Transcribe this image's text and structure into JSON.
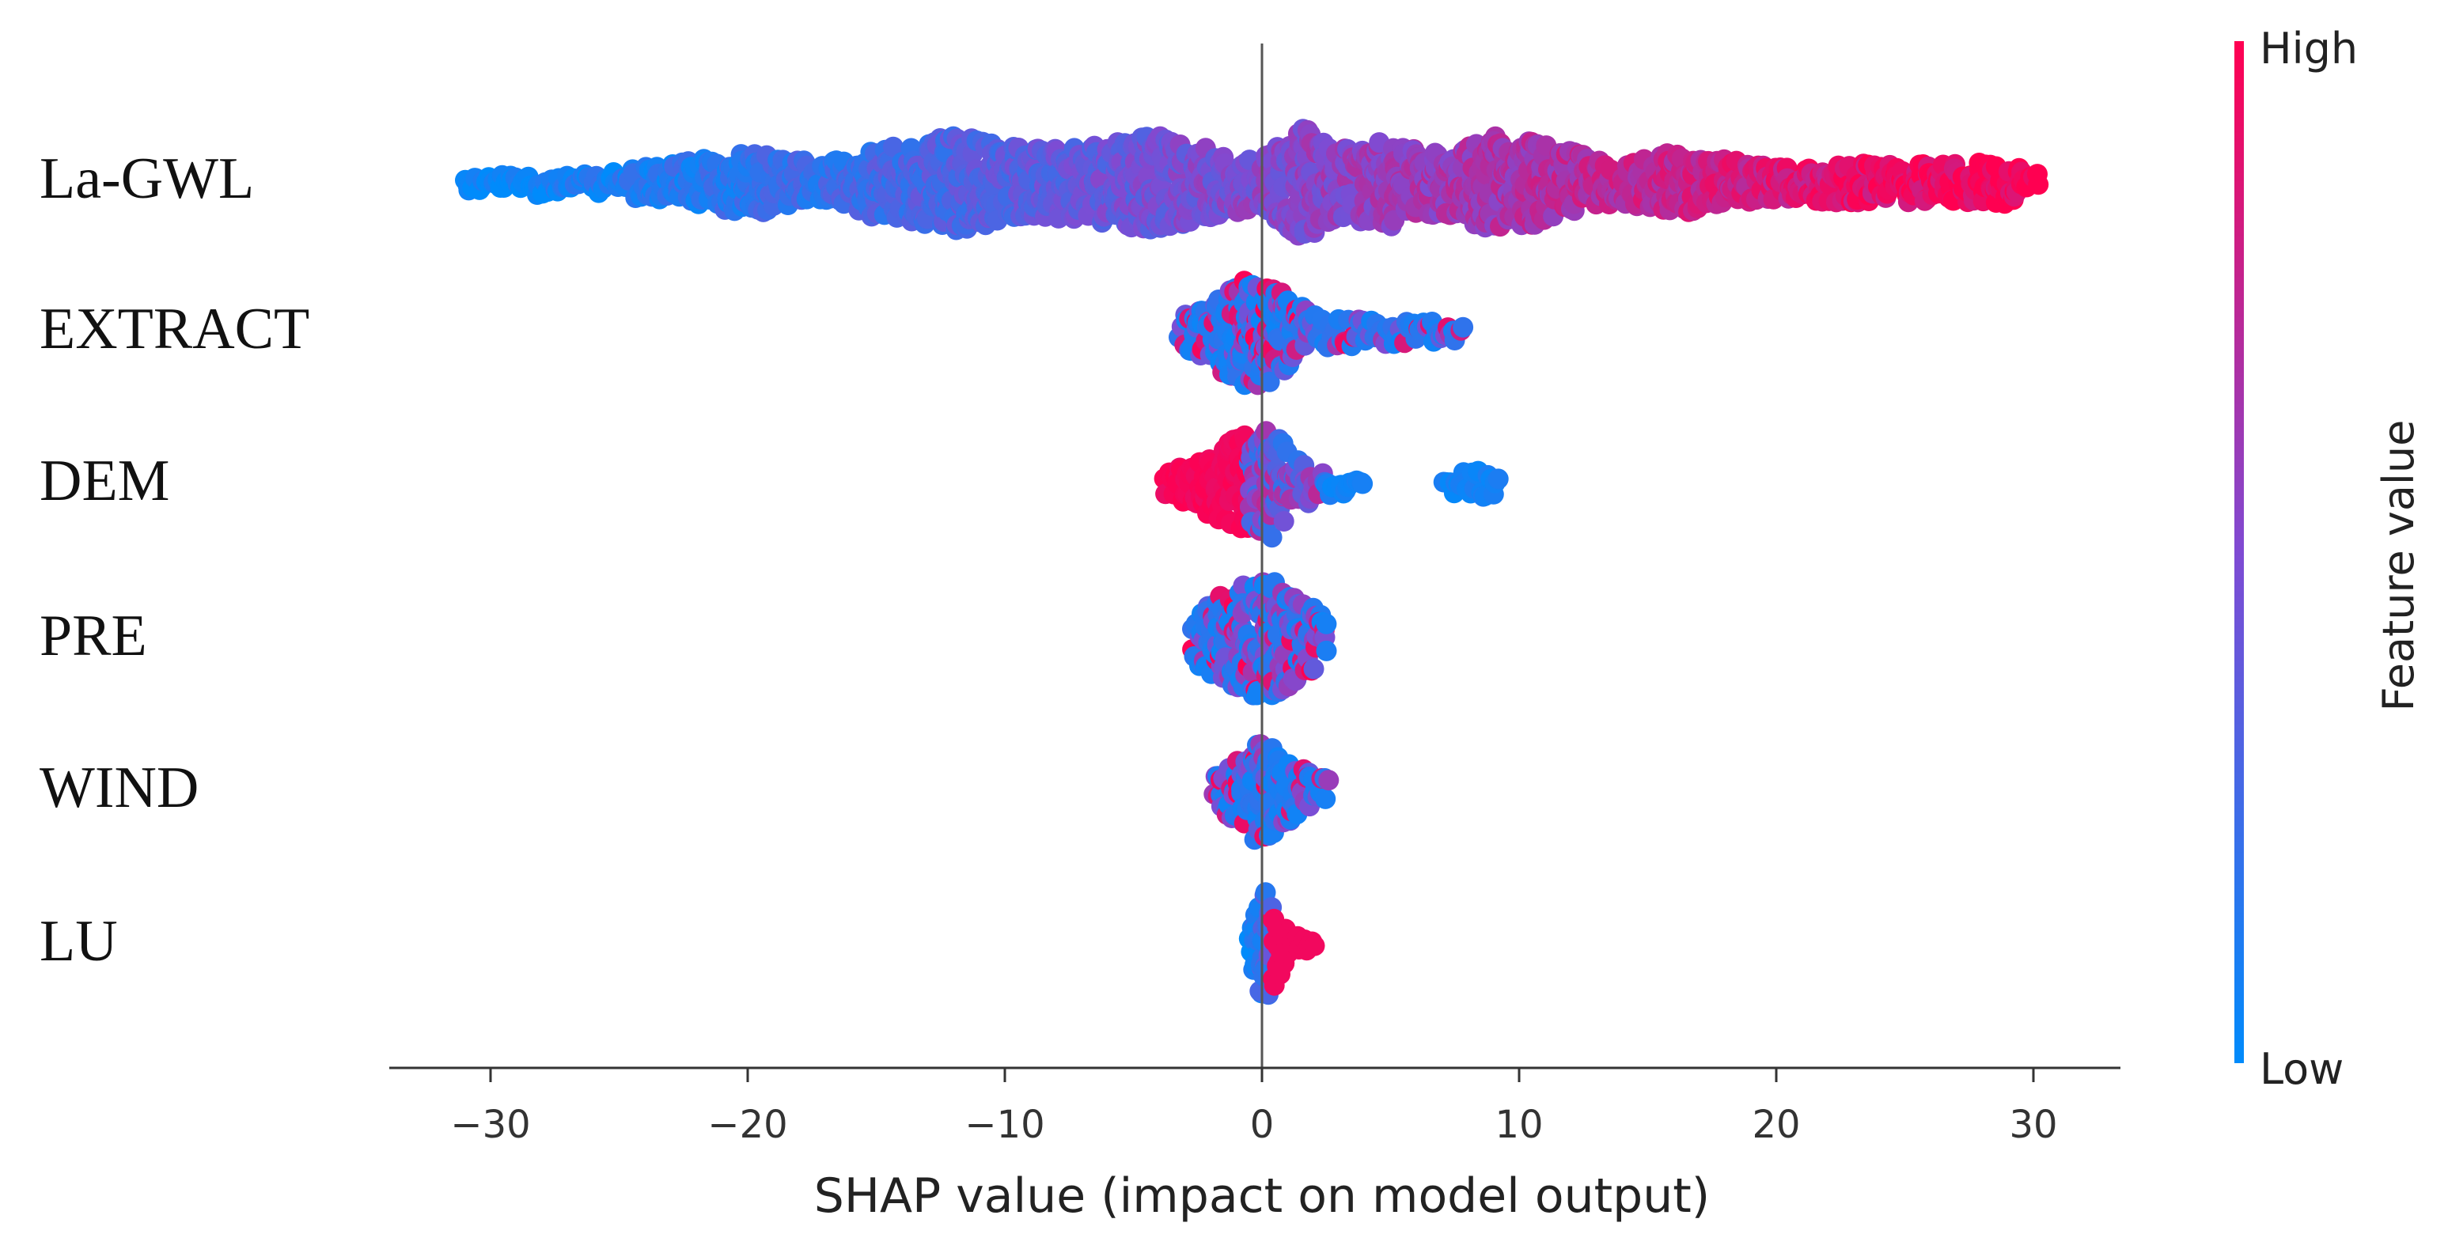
{
  "chart_data": {
    "type": "beeswarm",
    "xlabel": "SHAP value (impact on model output)",
    "xlim": [
      -34,
      33.5
    ],
    "x_ticks": [
      -30,
      -20,
      -10,
      0,
      10,
      20,
      30
    ],
    "x_tick_labels": [
      "−30",
      "−20",
      "−10",
      "0",
      "10",
      "20",
      "30"
    ],
    "colorbar": {
      "title": "Feature value",
      "high_label": "High",
      "low_label": "Low",
      "high_color": "#ff0051",
      "low_color": "#008bfb"
    },
    "features": [
      {
        "name": "La-GWL",
        "shap_range": [
          -31,
          30.2
        ],
        "color_trend": "increasing",
        "density": [
          [
            -31,
            0.15
          ],
          [
            -28,
            0.2
          ],
          [
            -26,
            0.15
          ],
          [
            -24,
            0.3
          ],
          [
            -20,
            0.55
          ],
          [
            -17,
            0.35
          ],
          [
            -15,
            0.6
          ],
          [
            -12,
            0.85
          ],
          [
            -9,
            0.6
          ],
          [
            -7,
            0.65
          ],
          [
            -4,
            0.85
          ],
          [
            -2,
            0.6
          ],
          [
            0,
            0.45
          ],
          [
            1.5,
            1.0
          ],
          [
            3,
            0.65
          ],
          [
            5,
            0.75
          ],
          [
            7,
            0.5
          ],
          [
            9,
            0.85
          ],
          [
            11,
            0.7
          ],
          [
            14,
            0.35
          ],
          [
            16,
            0.55
          ],
          [
            20,
            0.3
          ],
          [
            23,
            0.35
          ],
          [
            26,
            0.35
          ],
          [
            29,
            0.4
          ],
          [
            30.2,
            0.2
          ]
        ]
      },
      {
        "name": "EXTRACT",
        "shap_range": [
          -3.2,
          7.8
        ],
        "color_trend": "mixed",
        "density": [
          [
            -3.2,
            0.25
          ],
          [
            -2,
            0.5
          ],
          [
            -1,
            0.9
          ],
          [
            0,
            1.0
          ],
          [
            1,
            0.65
          ],
          [
            2,
            0.3
          ],
          [
            4,
            0.22
          ],
          [
            6,
            0.2
          ],
          [
            7.8,
            0.15
          ]
        ]
      },
      {
        "name": "DEM",
        "shap_range": [
          -3.8,
          9.2
        ],
        "color_trend": "decreasing",
        "density": [
          [
            -3.8,
            0.2
          ],
          [
            -2,
            0.55
          ],
          [
            -1,
            0.85
          ],
          [
            0,
            0.9
          ],
          [
            0.5,
            1.0
          ],
          [
            1,
            0.55
          ],
          [
            2,
            0.3
          ],
          [
            3,
            0.2
          ],
          [
            4,
            0.0
          ],
          [
            7,
            0.0
          ],
          [
            7.5,
            0.2
          ],
          [
            8.5,
            0.25
          ],
          [
            9.2,
            0.15
          ]
        ]
      },
      {
        "name": "PRE",
        "shap_range": [
          -2.7,
          2.6
        ],
        "color_trend": "mixed",
        "density": [
          [
            -2.7,
            0.4
          ],
          [
            -1.5,
            0.8
          ],
          [
            -0.5,
            1.0
          ],
          [
            0.5,
            1.0
          ],
          [
            1.5,
            0.7
          ],
          [
            2.6,
            0.35
          ]
        ]
      },
      {
        "name": "WIND",
        "shap_range": [
          -1.9,
          2.6
        ],
        "color_trend": "mixed",
        "density": [
          [
            -1.9,
            0.25
          ],
          [
            -1,
            0.55
          ],
          [
            -0.2,
            0.9
          ],
          [
            0.5,
            0.75
          ],
          [
            1.5,
            0.4
          ],
          [
            2.6,
            0.2
          ]
        ]
      },
      {
        "name": "LU",
        "shap_range": [
          -0.5,
          2.1
        ],
        "color_trend": "increasing",
        "density": [
          [
            -0.5,
            0.15
          ],
          [
            -0.1,
            1.0
          ],
          [
            0.3,
            0.9
          ],
          [
            1,
            0.25
          ],
          [
            2.1,
            0.12
          ]
        ]
      }
    ]
  }
}
